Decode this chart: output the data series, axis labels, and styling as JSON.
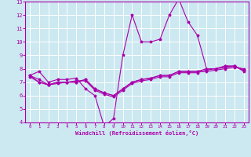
{
  "xlabel": "Windchill (Refroidissement éolien,°C)",
  "bg_color": "#cce8f0",
  "line_color": "#aa00aa",
  "xlim": [
    -0.5,
    23.5
  ],
  "ylim": [
    4,
    13
  ],
  "xticks": [
    0,
    1,
    2,
    3,
    4,
    5,
    6,
    7,
    8,
    9,
    10,
    11,
    12,
    13,
    14,
    15,
    16,
    17,
    18,
    19,
    20,
    21,
    22,
    23
  ],
  "yticks": [
    4,
    5,
    6,
    7,
    8,
    9,
    10,
    11,
    12,
    13
  ],
  "series1": [
    7.5,
    7.8,
    7.0,
    7.2,
    7.2,
    7.3,
    6.5,
    6.0,
    3.7,
    4.3,
    9.0,
    12.0,
    10.0,
    10.0,
    10.2,
    12.0,
    13.2,
    11.5,
    10.5,
    8.0,
    8.0,
    8.2,
    8.2,
    7.8
  ],
  "series2": [
    7.5,
    7.0,
    6.8,
    7.0,
    7.0,
    7.0,
    7.2,
    6.5,
    6.2,
    6.0,
    6.5,
    7.0,
    7.2,
    7.3,
    7.5,
    7.5,
    7.8,
    7.8,
    7.8,
    7.8,
    7.9,
    8.0,
    8.1,
    8.0
  ],
  "series3": [
    7.5,
    7.2,
    6.8,
    7.0,
    7.0,
    7.0,
    7.2,
    6.5,
    6.2,
    6.0,
    6.5,
    7.0,
    7.2,
    7.3,
    7.5,
    7.5,
    7.8,
    7.8,
    7.8,
    8.0,
    8.0,
    8.2,
    8.2,
    7.9
  ],
  "series4": [
    7.4,
    7.0,
    6.8,
    6.9,
    7.0,
    7.1,
    7.1,
    6.4,
    6.1,
    5.9,
    6.4,
    6.9,
    7.1,
    7.2,
    7.4,
    7.4,
    7.7,
    7.7,
    7.7,
    7.9,
    8.0,
    8.1,
    8.2,
    7.9
  ]
}
